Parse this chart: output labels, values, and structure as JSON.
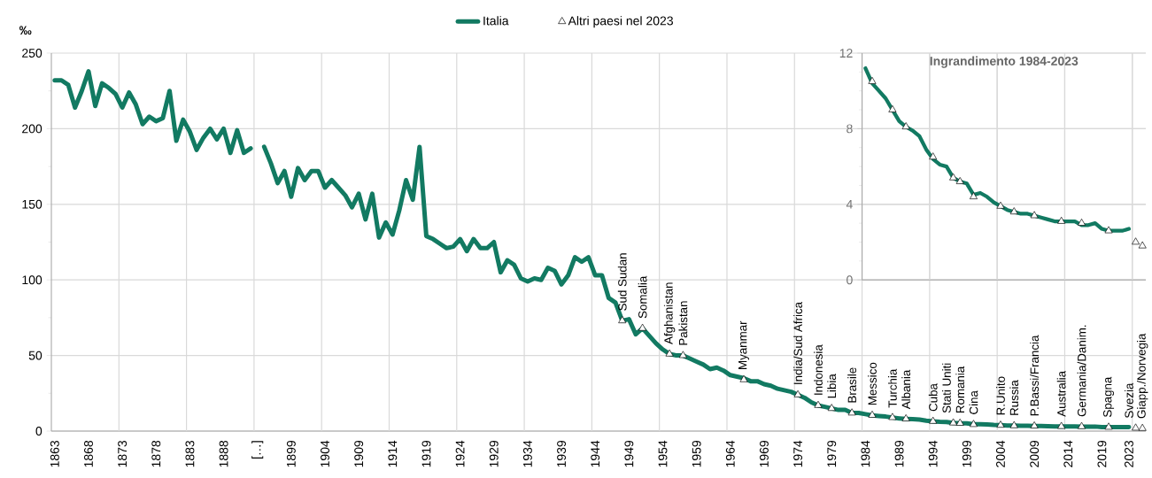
{
  "chart_data": [
    {
      "type": "line",
      "ylabel": "‰",
      "legend": "top",
      "grid": true,
      "ylim": [
        0,
        250
      ],
      "yticks": [
        0,
        {
          "value": 25,
          "label": null
        },
        50,
        {
          "value": 75,
          "label": null
        },
        100,
        {
          "value": 125,
          "label": null
        },
        150,
        {
          "value": 175,
          "label": null
        },
        200,
        {
          "value": 225,
          "label": null
        },
        250
      ],
      "categories": [
        "1863",
        null,
        null,
        null,
        null,
        "1868",
        null,
        null,
        null,
        null,
        "1873",
        null,
        null,
        null,
        null,
        "1878",
        null,
        null,
        null,
        null,
        "1883",
        null,
        null,
        null,
        null,
        "1888",
        null,
        null,
        null,
        null,
        "[…]",
        null,
        null,
        null,
        null,
        "1899",
        null,
        null,
        null,
        null,
        "1904",
        null,
        null,
        null,
        null,
        "1909",
        null,
        null,
        null,
        null,
        "1914",
        null,
        null,
        null,
        null,
        "1919",
        null,
        null,
        null,
        null,
        "1924",
        null,
        null,
        null,
        null,
        "1929",
        null,
        null,
        null,
        null,
        "1934",
        null,
        null,
        null,
        null,
        "1939",
        null,
        null,
        null,
        null,
        "1944",
        null,
        null,
        null,
        null,
        "1949",
        null,
        null,
        null,
        null,
        "1954",
        null,
        null,
        null,
        null,
        "1959",
        null,
        null,
        null,
        null,
        "1964",
        null,
        null,
        null,
        null,
        "1969",
        null,
        null,
        null,
        null,
        "1974",
        null,
        null,
        null,
        null,
        "1979",
        null,
        null,
        null,
        null,
        "1984",
        null,
        null,
        null,
        null,
        "1989",
        null,
        null,
        null,
        null,
        "1994",
        null,
        null,
        null,
        null,
        "1999",
        null,
        null,
        null,
        null,
        "2004",
        null,
        null,
        null,
        null,
        "2009",
        null,
        null,
        null,
        null,
        "2014",
        null,
        null,
        null,
        null,
        "2019",
        null,
        null,
        null,
        "2023",
        null,
        null
      ],
      "series": [
        {
          "name": "Italia",
          "color": "#127a62",
          "values": [
            232,
            232,
            229,
            214,
            225,
            238,
            215,
            230,
            227,
            223,
            214,
            224,
            216,
            203,
            208,
            205,
            207,
            225,
            192,
            206,
            198,
            186,
            194,
            200,
            193,
            200,
            184,
            199,
            184,
            187,
            null,
            188,
            177,
            164,
            172,
            155,
            174,
            166,
            172,
            172,
            161,
            166,
            161,
            156,
            148,
            157,
            140,
            157,
            128,
            138,
            130,
            146,
            166,
            153,
            188,
            129,
            127,
            124,
            121,
            122,
            127,
            119,
            127,
            121,
            121,
            125,
            105,
            113,
            110,
            101,
            99,
            101,
            100,
            108,
            106,
            97,
            103,
            115,
            112,
            115,
            103,
            103,
            88,
            85,
            73,
            74,
            64,
            68,
            63,
            58,
            54,
            51,
            50,
            50,
            48,
            46,
            44,
            41,
            42,
            40,
            37,
            36,
            35,
            33,
            33,
            31,
            30,
            28,
            27,
            26,
            24,
            22,
            19,
            17,
            16,
            15,
            14,
            14,
            12,
            12,
            11.2,
            10.4,
            10.0,
            9.6,
            9.0,
            8.4,
            8.1,
            7.9,
            7.6,
            6.9,
            6.4,
            6.1,
            6.0,
            5.4,
            5.2,
            5.1,
            4.5,
            4.6,
            4.4,
            4.1,
            3.9,
            3.7,
            3.6,
            3.5,
            3.5,
            3.4,
            3.3,
            3.2,
            3.1,
            3.1,
            3.1,
            3.1,
            2.9,
            2.9,
            3.0,
            2.7,
            2.6,
            2.6,
            2.6,
            2.7,
            null,
            null
          ]
        },
        {
          "name": "Altri paesi nel 2023",
          "type": "scatter",
          "marker": "triangle",
          "color": "#ffffff",
          "values": [
            null,
            null,
            null,
            null,
            null,
            null,
            null,
            null,
            null,
            null,
            null,
            null,
            null,
            null,
            null,
            null,
            null,
            null,
            null,
            null,
            null,
            null,
            null,
            null,
            null,
            null,
            null,
            null,
            null,
            null,
            null,
            null,
            null,
            null,
            null,
            null,
            null,
            null,
            null,
            null,
            null,
            null,
            null,
            null,
            null,
            null,
            null,
            null,
            null,
            null,
            null,
            null,
            null,
            null,
            null,
            null,
            null,
            null,
            null,
            null,
            null,
            null,
            null,
            null,
            null,
            null,
            null,
            null,
            null,
            null,
            null,
            null,
            null,
            null,
            null,
            null,
            null,
            null,
            null,
            null,
            null,
            null,
            null,
            null,
            73,
            null,
            null,
            68,
            null,
            null,
            null,
            51,
            null,
            50,
            null,
            null,
            null,
            null,
            null,
            null,
            null,
            null,
            34,
            null,
            null,
            null,
            null,
            null,
            null,
            null,
            24,
            null,
            null,
            17,
            null,
            15,
            null,
            null,
            12,
            null,
            null,
            10.5,
            null,
            null,
            9.0,
            null,
            8.1,
            null,
            null,
            null,
            6.5,
            null,
            null,
            5.4,
            5.2,
            null,
            4.4,
            null,
            null,
            null,
            3.9,
            null,
            3.6,
            null,
            null,
            3.4,
            null,
            null,
            null,
            3.1,
            null,
            null,
            3.0,
            null,
            null,
            null,
            2.6,
            null,
            null,
            null,
            2.0,
            1.8
          ],
          "value_labels": [
            null,
            null,
            null,
            null,
            null,
            null,
            null,
            null,
            null,
            null,
            null,
            null,
            null,
            null,
            null,
            null,
            null,
            null,
            null,
            null,
            null,
            null,
            null,
            null,
            null,
            null,
            null,
            null,
            null,
            null,
            null,
            null,
            null,
            null,
            null,
            null,
            null,
            null,
            null,
            null,
            null,
            null,
            null,
            null,
            null,
            null,
            null,
            null,
            null,
            null,
            null,
            null,
            null,
            null,
            null,
            null,
            null,
            null,
            null,
            null,
            null,
            null,
            null,
            null,
            null,
            null,
            null,
            null,
            null,
            null,
            null,
            null,
            null,
            null,
            null,
            null,
            null,
            null,
            null,
            null,
            null,
            null,
            null,
            null,
            "Sud Sudan",
            null,
            null,
            "Somalia",
            null,
            null,
            null,
            "Afghanistan",
            null,
            "Pakistan",
            null,
            null,
            null,
            null,
            null,
            null,
            null,
            null,
            "Myanmar",
            null,
            null,
            null,
            null,
            null,
            null,
            null,
            "India/Sud Africa",
            null,
            null,
            "Indonesia",
            null,
            "Libia",
            null,
            null,
            "Brasile",
            null,
            null,
            "Messico",
            null,
            null,
            "Turchia",
            null,
            "Albania",
            null,
            null,
            null,
            "Cuba",
            null,
            null,
            "Stati Uniti",
            "Romania",
            null,
            "Cina",
            null,
            null,
            null,
            "R.Unito",
            null,
            "Russia",
            null,
            null,
            "P.Bassi/Francia",
            null,
            null,
            null,
            "Australia",
            null,
            null,
            "Germania/Danim.",
            null,
            null,
            null,
            "Spagna",
            null,
            null,
            null,
            "Svezia",
            "Giapp./Norvegia"
          ]
        }
      ]
    },
    {
      "type": "line",
      "title": "Ingrandimento 1984-2023",
      "grid": true,
      "tick_labels": "y",
      "ylim": [
        0,
        12
      ],
      "yticks": [
        0,
        {
          "value": 1,
          "label": null
        },
        {
          "value": 2,
          "label": null
        },
        {
          "value": 3,
          "label": null
        },
        4,
        {
          "value": 5,
          "label": null
        },
        {
          "value": 6,
          "label": null
        },
        {
          "value": 7,
          "label": null
        },
        8,
        {
          "value": 9,
          "label": null
        },
        {
          "value": 10,
          "label": null
        },
        {
          "value": 11,
          "label": null
        },
        12
      ],
      "categories": [
        "1984",
        null,
        null,
        null,
        null,
        "1989",
        null,
        null,
        null,
        null,
        "1994",
        null,
        null,
        null,
        null,
        "1999",
        null,
        null,
        null,
        null,
        "2004",
        null,
        null,
        null,
        null,
        "2009",
        null,
        null,
        null,
        null,
        "2014",
        null,
        null,
        null,
        null,
        "2019",
        null,
        null,
        null,
        "2023",
        null,
        null
      ],
      "series": [
        {
          "color": "#127a62",
          "values": [
            11.2,
            10.4,
            10.0,
            9.6,
            9.0,
            8.4,
            8.1,
            7.9,
            7.6,
            6.9,
            6.4,
            6.1,
            6.0,
            5.4,
            5.2,
            5.1,
            4.5,
            4.6,
            4.4,
            4.1,
            3.9,
            3.7,
            3.6,
            3.5,
            3.5,
            3.4,
            3.3,
            3.2,
            3.1,
            3.1,
            3.1,
            3.1,
            2.9,
            2.9,
            3.0,
            2.7,
            2.6,
            2.6,
            2.6,
            2.7,
            null,
            null
          ]
        },
        {
          "type": "scatter",
          "marker": "triangle",
          "color": "#ffffff",
          "values": [
            null,
            10.5,
            null,
            null,
            9.0,
            null,
            8.1,
            null,
            null,
            null,
            6.5,
            null,
            null,
            5.4,
            5.2,
            null,
            4.4,
            null,
            null,
            null,
            3.9,
            null,
            3.6,
            null,
            null,
            3.4,
            null,
            null,
            null,
            3.1,
            null,
            null,
            3.0,
            null,
            null,
            null,
            2.6,
            null,
            null,
            null,
            2.0,
            1.8
          ]
        }
      ]
    }
  ]
}
